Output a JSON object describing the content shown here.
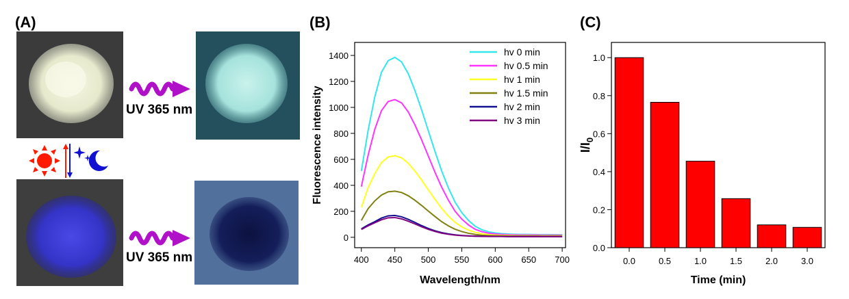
{
  "panels": {
    "a": "(A)",
    "b": "(B)",
    "c": "(C)"
  },
  "panel_a": {
    "arrow_label_top": "UV 365 nm",
    "arrow_label_bottom": "UV 365 nm",
    "icons": [
      "sun-icon",
      "moon-icon",
      "stars-icon"
    ],
    "colors": {
      "sun": "#ff1a00",
      "moon": "#1010d0",
      "wave_arrow": "#b010c8",
      "photo_bg_dark": "#3a3a3a",
      "photo_bg_teal": "#24505e",
      "photo_bg_blue": "#4e6a98",
      "powder_white": "#eef0d6",
      "powder_cyan": "#b8ece6",
      "powder_blue": "#3a3ad8",
      "powder_navy": "#10185a"
    }
  },
  "chart_data": [
    {
      "type": "line",
      "title": "",
      "xlabel": "Wavelength/nm",
      "ylabel": "Fluorescence intensity",
      "xlim": [
        390,
        705
      ],
      "ylim": [
        -80,
        1500
      ],
      "xticks": [
        400,
        450,
        500,
        550,
        600,
        650,
        700
      ],
      "yticks": [
        0,
        200,
        400,
        600,
        800,
        1000,
        1200,
        1400
      ],
      "legend_position": "top-right",
      "x": [
        400,
        410,
        420,
        430,
        440,
        450,
        460,
        470,
        480,
        490,
        500,
        510,
        520,
        530,
        540,
        550,
        560,
        570,
        580,
        590,
        600,
        610,
        620,
        630,
        640,
        650,
        660,
        670,
        680,
        690,
        700
      ],
      "series": [
        {
          "name": "hv 0 min",
          "color": "#33e6ee",
          "values": [
            510,
            820,
            1080,
            1270,
            1360,
            1385,
            1350,
            1260,
            1130,
            980,
            820,
            660,
            510,
            380,
            270,
            190,
            130,
            85,
            58,
            42,
            33,
            28,
            25,
            23,
            22,
            22,
            21,
            21,
            21,
            20,
            20
          ]
        },
        {
          "name": "hv 0.5 min",
          "color": "#ff33ff",
          "values": [
            390,
            630,
            830,
            975,
            1045,
            1060,
            1035,
            965,
            865,
            750,
            625,
            500,
            385,
            285,
            200,
            140,
            95,
            62,
            43,
            32,
            26,
            22,
            20,
            19,
            18,
            18,
            18,
            17,
            17,
            17,
            17
          ]
        },
        {
          "name": "hv 1 min",
          "color": "#ffff22",
          "values": [
            230,
            380,
            490,
            575,
            618,
            628,
            612,
            570,
            510,
            440,
            365,
            292,
            222,
            163,
            115,
            80,
            55,
            38,
            27,
            21,
            17,
            15,
            14,
            13,
            13,
            13,
            12,
            12,
            12,
            12,
            12
          ]
        },
        {
          "name": "hv 1.5 min",
          "color": "#808010",
          "values": [
            130,
            220,
            280,
            325,
            350,
            355,
            345,
            320,
            285,
            245,
            202,
            160,
            120,
            88,
            62,
            44,
            31,
            22,
            16,
            13,
            11,
            10,
            9,
            9,
            9,
            9,
            9,
            8,
            8,
            8,
            8
          ]
        },
        {
          "name": "hv 2 min",
          "color": "#101090",
          "values": [
            65,
            95,
            120,
            148,
            165,
            168,
            158,
            138,
            115,
            90,
            68,
            50,
            36,
            26,
            19,
            14,
            11,
            9,
            8,
            7,
            7,
            7,
            6,
            6,
            6,
            6,
            6,
            6,
            6,
            6,
            6
          ]
        },
        {
          "name": "hv 3 min",
          "color": "#800080",
          "values": [
            60,
            88,
            112,
            135,
            150,
            152,
            142,
            124,
            103,
            81,
            61,
            45,
            32,
            23,
            17,
            13,
            10,
            8,
            7,
            6,
            6,
            6,
            5,
            5,
            5,
            5,
            5,
            5,
            5,
            5,
            5
          ]
        }
      ]
    },
    {
      "type": "bar",
      "title": "",
      "xlabel": "Time (min)",
      "ylabel": "I/I0",
      "ylabel_main": "I/I",
      "ylabel_sub": "0",
      "categories": [
        "0.0",
        "0.5",
        "1.0",
        "1.5",
        "2.0",
        "3.0"
      ],
      "values": [
        1.0,
        0.765,
        0.455,
        0.258,
        0.12,
        0.107
      ],
      "ylim": [
        0,
        1.08
      ],
      "yticks": [
        "0.0",
        "0.2",
        "0.4",
        "0.6",
        "0.8",
        "1.0"
      ],
      "bar_color": "#ff0000"
    }
  ]
}
